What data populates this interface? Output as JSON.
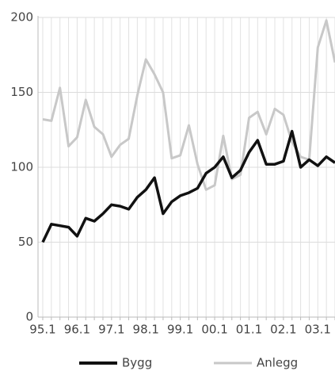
{
  "chart_data": {
    "type": "line",
    "categories": [
      "95.1",
      null,
      null,
      null,
      "96.1",
      null,
      null,
      null,
      "97.1",
      null,
      null,
      null,
      "98.1",
      null,
      null,
      null,
      "99.1",
      null,
      null,
      null,
      "00.1",
      null,
      null,
      null,
      "01.1",
      null,
      null,
      null,
      "02.1",
      null,
      null,
      null,
      "03.1",
      null,
      null
    ],
    "series": [
      {
        "name": "Bygg",
        "color": "#111111",
        "values": [
          50,
          62,
          61,
          60,
          54,
          66,
          64,
          69,
          75,
          74,
          72,
          80,
          85,
          93,
          69,
          77,
          81,
          83,
          86,
          96,
          100,
          107,
          93,
          98,
          110,
          118,
          102,
          102,
          104,
          124,
          100,
          105,
          101,
          107,
          103
        ]
      },
      {
        "name": "Anlegg",
        "color": "#c8c8c8",
        "values": [
          132,
          131,
          153,
          114,
          120,
          145,
          127,
          122,
          107,
          115,
          119,
          148,
          172,
          162,
          150,
          106,
          108,
          128,
          102,
          85,
          88,
          121,
          92,
          95,
          133,
          137,
          122,
          139,
          135,
          117,
          107,
          105,
          180,
          198,
          170
        ]
      }
    ],
    "ylim": [
      0,
      200
    ],
    "yticks": [
      0,
      50,
      100,
      150,
      200
    ],
    "grid": true
  }
}
